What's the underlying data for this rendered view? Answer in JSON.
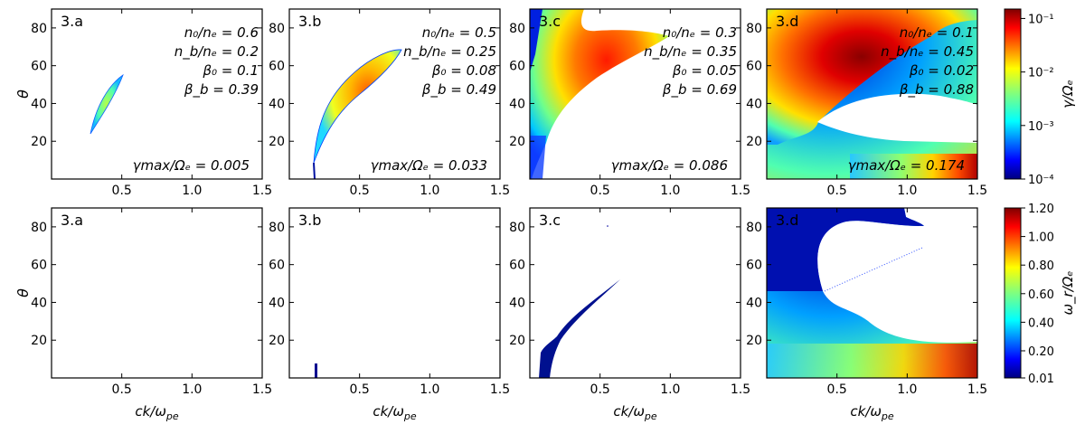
{
  "chart_data": {
    "type": "heatmap",
    "title": "",
    "xlabel": "ck/ω",
    "xlabel_sub": "pe",
    "ylabel": "θ",
    "xlim": [
      0.0,
      1.5
    ],
    "ylim": [
      0,
      90
    ],
    "x_ticks": [
      0.5,
      1.0,
      1.5
    ],
    "x_tick_labels": [
      "0.5",
      "1.0",
      "1.5"
    ],
    "y_ticks": [
      20,
      40,
      60,
      80
    ],
    "y_tick_labels": [
      "20",
      "40",
      "60",
      "80"
    ],
    "panels": [
      {
        "label": "3.a",
        "params": [
          "n₀/nₑ = 0.6",
          "n_b/nₑ = 0.2",
          "β₀ = 0.1",
          "β_b = 0.39"
        ],
        "gamma_max_label": "γmax/Ωₑ = 0.005",
        "gamma_max": 0.005
      },
      {
        "label": "3.b",
        "params": [
          "n₀/nₑ = 0.5",
          "n_b/nₑ = 0.25",
          "β₀ = 0.08",
          "β_b = 0.49"
        ],
        "gamma_max_label": "γmax/Ωₑ = 0.033",
        "gamma_max": 0.033
      },
      {
        "label": "3.c",
        "params": [
          "n₀/nₑ = 0.3",
          "n_b/nₑ = 0.35",
          "β₀ = 0.05",
          "β_b = 0.69"
        ],
        "gamma_max_label": "γmax/Ωₑ = 0.086",
        "gamma_max": 0.086
      },
      {
        "label": "3.d",
        "params": [
          "n₀/nₑ = 0.1",
          "n_b/nₑ = 0.45",
          "β₀ = 0.02",
          "β_b = 0.88"
        ],
        "gamma_max_label": "γmax/Ωₑ = 0.174",
        "gamma_max": 0.174
      }
    ],
    "rows": [
      {
        "quantity": "growth rate",
        "colorbar_label": "γ/Ωₑ",
        "colorbar_scale": "log",
        "colorbar_range": [
          0.0001,
          0.15
        ],
        "colorbar_ticks": [
          "10⁻⁴",
          "10⁻³",
          "10⁻²",
          "10⁻¹"
        ]
      },
      {
        "quantity": "real frequency",
        "colorbar_label": "ω_r/Ωₑ",
        "colorbar_scale": "linear",
        "colorbar_range": [
          0.01,
          1.2
        ],
        "colorbar_ticks": [
          "0.01",
          "0.20",
          "0.40",
          "0.60",
          "0.80",
          "1.00",
          "1.20"
        ]
      }
    ]
  }
}
